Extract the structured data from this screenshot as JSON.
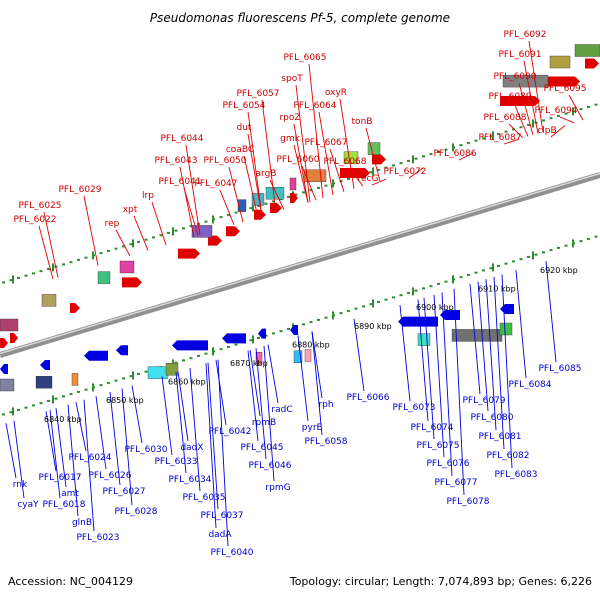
{
  "header": {
    "title": "Pseudomonas fluorescens Pf-5, complete genome"
  },
  "footer": {
    "accession": "Accession: NC_004129",
    "summary": "Topology: circular; Length: 7,074,893 bp; Genes: 6,226"
  },
  "ticks": [
    "6840 kbp",
    "6850 kbp",
    "6860 kbp",
    "6870 kbp",
    "6880 kbp",
    "6890 kbp",
    "6900 kbp",
    "6910 kbp",
    "6920 kbp"
  ],
  "forward_labels": [
    "PFL_6022",
    "PFL_6025",
    "PFL_6029",
    "rep",
    "xpt",
    "lrp",
    "PFL_6041",
    "PFL_6043",
    "PFL_6044",
    "PFL_6047",
    "PFL_6050",
    "coaBC",
    "dut",
    "PFL_6054",
    "PFL_6057",
    "argB",
    "rpoZ",
    "spoT",
    "PFL_6065",
    "gmk",
    "PFL_6064",
    "PFL_6060",
    "PFL_6067",
    "PFL_6068",
    "oxyR",
    "tonB",
    "recG",
    "PFL_6072",
    "PFL_6086",
    "PFL_6087",
    "PFL_6088",
    "PFL_6089",
    "PFL_6090",
    "PFL_6091",
    "PFL_6092",
    "clpB",
    "PFL_6094",
    "PFL_6095"
  ],
  "reverse_labels": [
    "rnk",
    "cyaY",
    "PFL_6017",
    "amt",
    "PFL_6018",
    "glnB",
    "PFL_6023",
    "PFL_6024",
    "PFL_6026",
    "PFL_6027",
    "PFL_6028",
    "PFL_6030",
    "PFL_6033",
    "PFL_6034",
    "PFL_6035",
    "dadX",
    "PFL_6037",
    "dadA",
    "PFL_6040",
    "PFL_6042",
    "rpmB",
    "PFL_6045",
    "PFL_6046",
    "rpmG",
    "radC",
    "pyrE",
    "rph",
    "PFL_6058",
    "PFL_6066",
    "PFL_6073",
    "PFL_6074",
    "PFL_6075",
    "PFL_6076",
    "PFL_6077",
    "PFL_6078",
    "PFL_6079",
    "PFL_6080",
    "PFL_6081",
    "PFL_6082",
    "PFL_6083",
    "PFL_6084",
    "PFL_6085"
  ],
  "colors": {
    "forward": "#e00000",
    "reverse": "#0000e0",
    "backbone": "#909090",
    "tick": "#2e8b2e"
  }
}
